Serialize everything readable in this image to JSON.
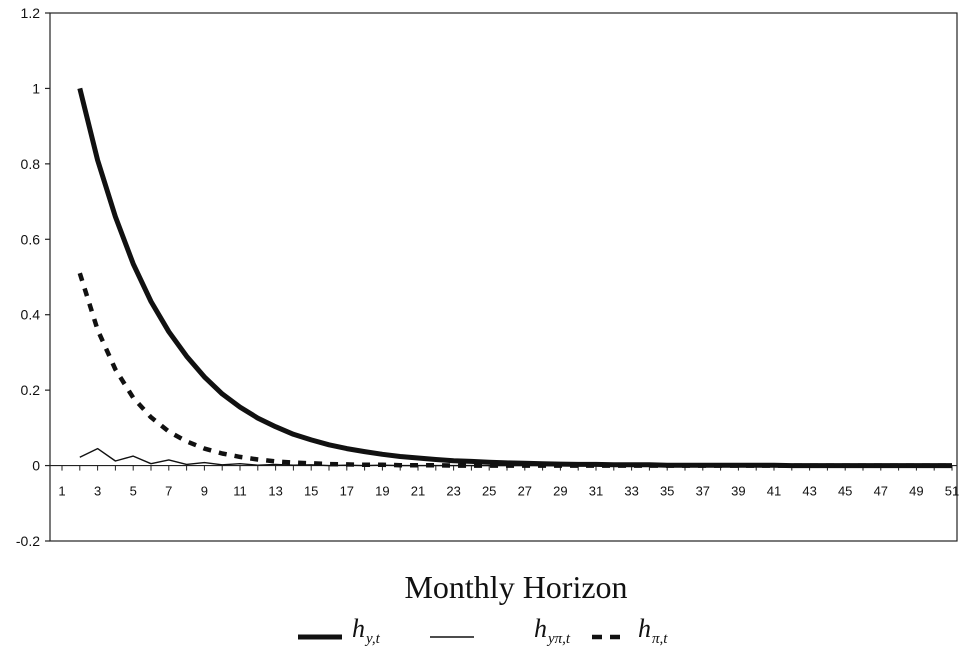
{
  "chart_data": {
    "type": "line",
    "title": "",
    "xlabel": "Monthly Horizon",
    "ylabel": "",
    "ylim": [
      -0.2,
      1.2
    ],
    "yticks": [
      "-0.2",
      "0",
      "0.2",
      "0.4",
      "0.6",
      "0.8",
      "1",
      "1.2"
    ],
    "xlim": [
      1,
      51
    ],
    "xticks": [
      "1",
      "3",
      "5",
      "7",
      "9",
      "11",
      "13",
      "15",
      "17",
      "19",
      "21",
      "23",
      "25",
      "27",
      "29",
      "31",
      "33",
      "35",
      "37",
      "39",
      "41",
      "43",
      "45",
      "47",
      "49",
      "51"
    ],
    "grid": false,
    "legend_position": "bottom",
    "x": [
      2,
      3,
      4,
      5,
      6,
      7,
      8,
      9,
      10,
      11,
      12,
      13,
      14,
      15,
      16,
      17,
      18,
      19,
      20,
      21,
      22,
      23,
      24,
      25,
      26,
      27,
      28,
      29,
      30,
      31,
      32,
      33,
      34,
      35,
      36,
      37,
      38,
      39,
      40,
      41,
      42,
      43,
      44,
      45,
      46,
      47,
      48,
      49,
      50,
      51
    ],
    "series": [
      {
        "name": "h_{y,t}",
        "legend_main": "h",
        "legend_sub": "y,t",
        "style": "thick-solid",
        "color": "#111111",
        "values": [
          1.0,
          0.81,
          0.66,
          0.535,
          0.435,
          0.355,
          0.29,
          0.235,
          0.19,
          0.155,
          0.126,
          0.103,
          0.083,
          0.068,
          0.055,
          0.045,
          0.037,
          0.03,
          0.024,
          0.02,
          0.016,
          0.013,
          0.011,
          0.009,
          0.007,
          0.006,
          0.005,
          0.004,
          0.003,
          0.003,
          0.002,
          0.002,
          0.002,
          0.001,
          0.001,
          0.001,
          0.001,
          0.001,
          0.001,
          0.001,
          0.0,
          0.0,
          0.0,
          0.0,
          0.0,
          0.0,
          0.0,
          0.0,
          0.0,
          0.0
        ]
      },
      {
        "name": "h_{yπ,t}",
        "legend_main": "h",
        "legend_sub": "yπ,t",
        "style": "thin-solid",
        "color": "#111111",
        "values": [
          0.022,
          0.045,
          0.012,
          0.025,
          0.005,
          0.015,
          0.003,
          0.008,
          0.002,
          0.005,
          0.001,
          0.003,
          0.001,
          0.002,
          0.0,
          0.001,
          0.0,
          0.001,
          0.0,
          0.0,
          0.0,
          0.0,
          0.0,
          0.0,
          0.0,
          0.0,
          0.0,
          0.0,
          0.0,
          0.0,
          0.0,
          0.0,
          0.0,
          0.0,
          0.0,
          0.0,
          0.0,
          0.0,
          0.0,
          0.0,
          0.0,
          0.0,
          0.0,
          0.0,
          0.0,
          0.0,
          0.0,
          0.0,
          0.0,
          0.0
        ]
      },
      {
        "name": "h_{π,t}",
        "legend_main": "h",
        "legend_sub": "π,t",
        "style": "thick-dashed",
        "color": "#111111",
        "values": [
          0.51,
          0.36,
          0.255,
          0.18,
          0.128,
          0.09,
          0.064,
          0.045,
          0.032,
          0.023,
          0.016,
          0.011,
          0.008,
          0.006,
          0.004,
          0.003,
          0.002,
          0.002,
          0.001,
          0.001,
          0.001,
          0.0,
          0.0,
          0.0,
          0.0,
          0.0,
          0.0,
          0.0,
          0.0,
          0.0,
          0.0,
          0.0,
          0.0,
          0.0,
          0.0,
          0.0,
          0.0,
          0.0,
          0.0,
          0.0,
          0.0,
          0.0,
          0.0,
          0.0,
          0.0,
          0.0,
          0.0,
          0.0,
          0.0,
          0.0
        ]
      }
    ]
  }
}
